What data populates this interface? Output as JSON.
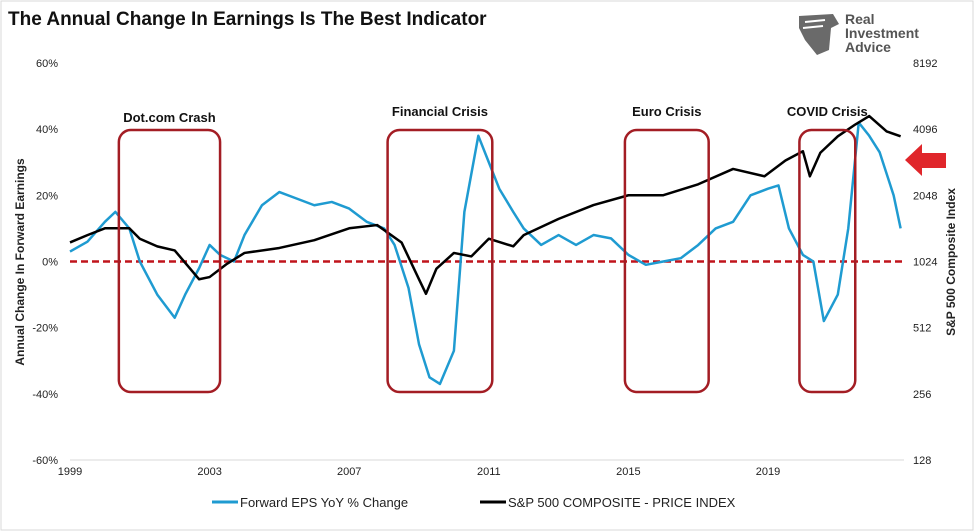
{
  "title": "The Annual Change In Earnings Is The Best Indicator",
  "logo": {
    "line1": "Real",
    "line2": "Investment",
    "line3": "Advice"
  },
  "colors": {
    "eps": "#1f9bd1",
    "spx": "#000000",
    "zero": "#c0141c",
    "box": "#a31d24",
    "arrow": "#e0262b"
  },
  "chart_data": {
    "type": "line",
    "title": "The Annual Change In Earnings Is The Best Indicator",
    "ylabel": "Annual Change In Forward Earnings",
    "y2label": "S&P 500  Composite Index",
    "xlim": [
      1999,
      2022.9
    ],
    "ylim": [
      -60,
      60
    ],
    "y2lim": [
      128,
      8192
    ],
    "y2scale": "log2",
    "xticks": [
      "1999",
      "2003",
      "2007",
      "2011",
      "2015",
      "2019"
    ],
    "yticks": [
      "60%",
      "40%",
      "20%",
      "0%",
      "-20%",
      "-40%",
      "-60%"
    ],
    "y2ticks": [
      "8192",
      "4096",
      "2048",
      "1024",
      "512",
      "256",
      "128"
    ],
    "legend": {
      "position": "bottom",
      "entries": [
        "Forward EPS YoY % Change",
        "S&P 500 COMPOSITE - PRICE INDEX"
      ]
    },
    "annotations": [
      {
        "label": "Dot.com Crash",
        "x0": 2000.4,
        "x1": 2003.3
      },
      {
        "label": "Financial Crisis",
        "x0": 2008.1,
        "x1": 2011.1
      },
      {
        "label": "Euro Crisis",
        "x0": 2014.9,
        "x1": 2017.3
      },
      {
        "label": "COVID Crisis",
        "x0": 2019.9,
        "x1": 2021.5
      }
    ],
    "series": [
      {
        "name": "Forward EPS YoY % Change",
        "axis": "left",
        "x": [
          1999,
          1999.5,
          2000,
          2000.3,
          2000.7,
          2001,
          2001.5,
          2002,
          2002.3,
          2002.7,
          2003,
          2003.3,
          2003.7,
          2004,
          2004.5,
          2005,
          2005.5,
          2006,
          2006.5,
          2007,
          2007.5,
          2008,
          2008.3,
          2008.7,
          2009,
          2009.3,
          2009.6,
          2010,
          2010.3,
          2010.7,
          2011,
          2011.3,
          2011.7,
          2012,
          2012.5,
          2013,
          2013.5,
          2014,
          2014.5,
          2015,
          2015.5,
          2016,
          2016.5,
          2017,
          2017.5,
          2018,
          2018.5,
          2019,
          2019.3,
          2019.6,
          2020,
          2020.3,
          2020.6,
          2021,
          2021.3,
          2021.6,
          2021.9,
          2022.2,
          2022.6,
          2022.8
        ],
        "values": [
          3,
          6,
          12,
          15,
          10,
          0,
          -10,
          -17,
          -10,
          -2,
          5,
          2,
          0,
          8,
          17,
          21,
          19,
          17,
          18,
          16,
          12,
          10,
          5,
          -8,
          -25,
          -35,
          -37,
          -27,
          15,
          38,
          30,
          22,
          15,
          10,
          5,
          8,
          5,
          8,
          7,
          2,
          -1,
          0,
          1,
          5,
          10,
          12,
          20,
          22,
          23,
          10,
          2,
          0,
          -18,
          -10,
          10,
          42,
          38,
          33,
          20,
          10
        ]
      },
      {
        "name": "S&P 500 COMPOSITE - PRICE INDEX",
        "axis": "right",
        "x": [
          1999,
          1999.5,
          2000,
          2000.7,
          2001,
          2001.5,
          2002,
          2002.7,
          2003,
          2003.5,
          2004,
          2005,
          2006,
          2007,
          2007.8,
          2008.5,
          2009,
          2009.2,
          2009.5,
          2010,
          2010.5,
          2011,
          2011.7,
          2012,
          2013,
          2014,
          2015,
          2016,
          2017,
          2018,
          2018.9,
          2019.5,
          2020,
          2020.2,
          2020.5,
          2021,
          2021.5,
          2021.9,
          2022.4,
          2022.8
        ],
        "values": [
          1250,
          1350,
          1450,
          1450,
          1300,
          1200,
          1150,
          850,
          870,
          1000,
          1120,
          1180,
          1280,
          1450,
          1500,
          1250,
          850,
          730,
          950,
          1120,
          1080,
          1300,
          1200,
          1350,
          1600,
          1850,
          2050,
          2050,
          2300,
          2700,
          2500,
          2950,
          3250,
          2500,
          3200,
          3800,
          4300,
          4700,
          4000,
          3800
        ]
      }
    ]
  }
}
